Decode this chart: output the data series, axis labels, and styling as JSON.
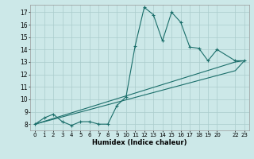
{
  "title": "",
  "xlabel": "Humidex (Indice chaleur)",
  "bg_color": "#cce8e8",
  "line_color": "#1a6e6a",
  "grid_color": "#aacccc",
  "xlim": [
    -0.5,
    23.5
  ],
  "ylim": [
    7.5,
    17.6
  ],
  "xticks": [
    0,
    1,
    2,
    3,
    4,
    5,
    6,
    7,
    8,
    9,
    10,
    11,
    12,
    13,
    14,
    15,
    16,
    17,
    18,
    19,
    20,
    22,
    23
  ],
  "yticks": [
    8,
    9,
    10,
    11,
    12,
    13,
    14,
    15,
    16,
    17
  ],
  "line1_x": [
    0,
    1,
    2,
    3,
    4,
    5,
    6,
    7,
    8,
    9,
    10,
    11,
    12,
    13,
    14,
    15,
    16,
    17,
    18,
    19,
    20,
    22,
    23
  ],
  "line1_y": [
    8.0,
    8.5,
    8.8,
    8.2,
    7.9,
    8.2,
    8.2,
    8.0,
    8.0,
    9.5,
    10.2,
    14.3,
    17.4,
    16.8,
    14.7,
    17.0,
    16.2,
    14.2,
    14.1,
    13.1,
    14.0,
    13.1,
    13.1
  ],
  "line2_x": [
    0,
    22,
    23
  ],
  "line2_y": [
    8.0,
    13.0,
    13.1
  ],
  "line3_x": [
    0,
    22,
    23
  ],
  "line3_y": [
    8.0,
    12.3,
    13.1
  ]
}
